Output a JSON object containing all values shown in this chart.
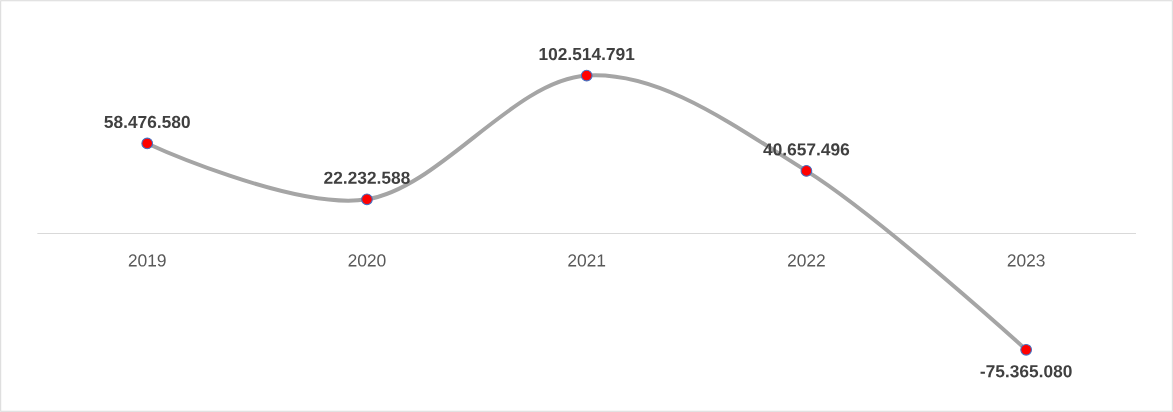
{
  "chart_data": {
    "type": "line",
    "categories": [
      "2019",
      "2020",
      "2021",
      "2022",
      "2023"
    ],
    "series": [
      {
        "color": "#a5a5a5",
        "values": [
          58476580,
          22232588,
          102514791,
          40657496,
          -75365080
        ],
        "value_labels": [
          "58.476.580",
          "22.232.588",
          "102.514.791",
          "40.657.496",
          "-75.365.080"
        ]
      }
    ],
    "marker": "circle",
    "line_style": "solid"
  }
}
